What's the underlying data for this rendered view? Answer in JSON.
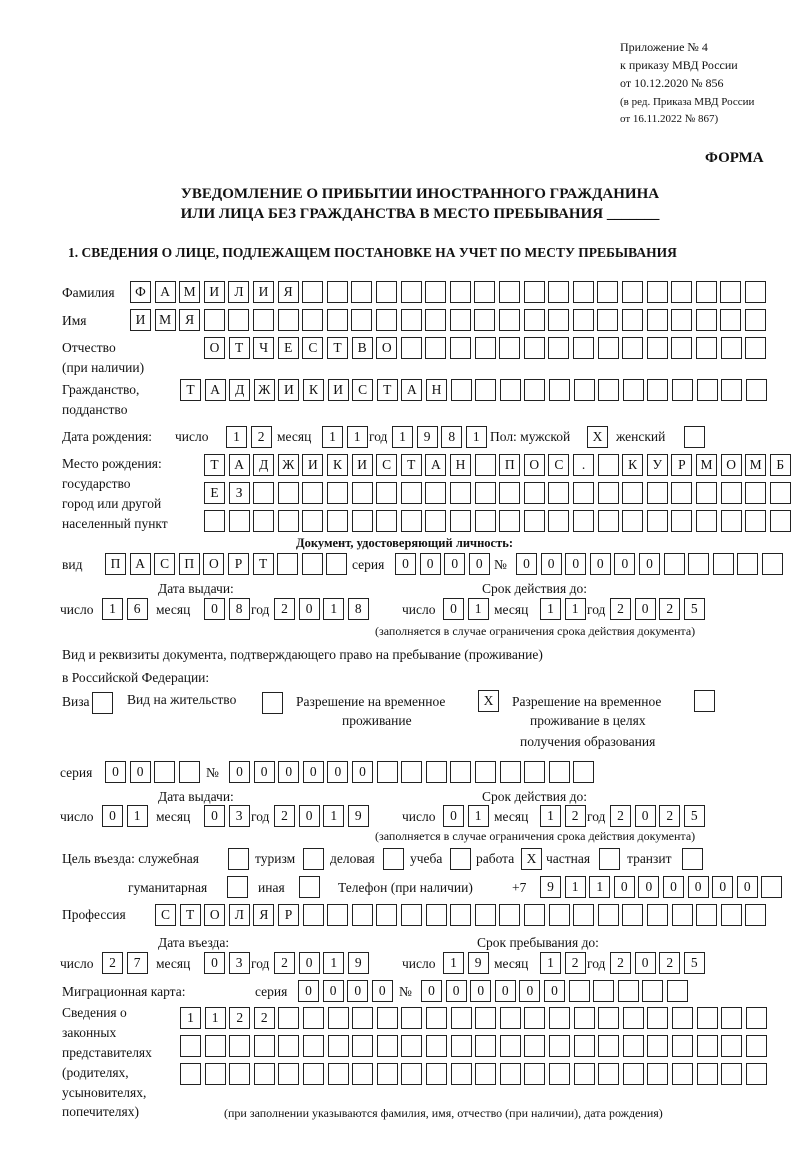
{
  "header": {
    "line1": "Приложение № 4",
    "line2": "к приказу МВД России",
    "line3": "от 10.12.2020 № 856",
    "line4": "(в ред. Приказа МВД России",
    "line5": "от 16.11.2022 № 867)",
    "forma": "ФОРМА"
  },
  "title": {
    "line1": "УВЕДОМЛЕНИЕ О ПРИБЫТИИ ИНОСТРАННОГО ГРАЖДАНИНА",
    "line2": "ИЛИ ЛИЦА БЕЗ ГРАЖДАНСТВА В МЕСТО ПРЕБЫВАНИЯ _______"
  },
  "section1": "1. СВЕДЕНИЯ О ЛИЦЕ, ПОДЛЕЖАЩЕМ ПОСТАНОВКЕ НА УЧЕТ ПО МЕСТУ ПРЕБЫВАНИЯ",
  "labels": {
    "surname": "Фамилия",
    "name": "Имя",
    "patronymic1": "Отчество",
    "patronymic2": "(при наличии)",
    "citizenship1": "Гражданство,",
    "citizenship2": "подданство",
    "birthdate": "Дата рождения:",
    "day": "число",
    "month": "месяц",
    "year": "год",
    "sex": "Пол: мужской",
    "female": "женский",
    "birthplace1": "Место рождения:",
    "birthplace2": "государство",
    "birthplace3": "город или другой",
    "birthplace4": "населенный пункт",
    "iddoc": "Документ, удостоверяющий личность:",
    "kind": "вид",
    "series": "серия",
    "number": "№",
    "issued": "Дата выдачи:",
    "valid": "Срок действия до:",
    "valid_note": "(заполняется в случае ограничения срока действия документа)",
    "stay_doc1": "Вид и реквизиты документа, подтверждающего право на пребывание (проживание)",
    "stay_doc2": "в Российской Федерации:",
    "visa": "Виза",
    "residence": "Вид на жительство",
    "trp1": "Разрешение на временное",
    "trp2": "проживание",
    "trpe1": "Разрешение на временное",
    "trpe2": "проживание в целях",
    "trpe3": "получения образования",
    "purpose": "Цель въезда: служебная",
    "tourism": "туризм",
    "business": "деловая",
    "study": "учеба",
    "work": "работа",
    "private": "частная",
    "transit": "транзит",
    "humanitarian": "гуманитарная",
    "other": "иная",
    "phone": "Телефон (при наличии)",
    "phone_prefix": "+7",
    "profession": "Профессия",
    "entry_date": "Дата въезда:",
    "stay_until": "Срок пребывания до:",
    "migration_card": "Миграционная карта:",
    "legal1": "Сведения о",
    "legal2": "законных",
    "legal3": "представителях",
    "legal4": "(родителях,",
    "legal5": "усыновителях,",
    "legal6": "попечителях)",
    "legal_note": "(при заполнении указываются фамилия, имя, отчество (при наличии), дата рождения)"
  },
  "fields": {
    "surname": [
      "Ф",
      "А",
      "М",
      "И",
      "Л",
      "И",
      "Я"
    ],
    "name": [
      "И",
      "М",
      "Я"
    ],
    "patronymic": [
      "О",
      "Т",
      "Ч",
      "Е",
      "С",
      "Т",
      "В",
      "О"
    ],
    "citizenship": [
      "Т",
      "А",
      "Д",
      "Ж",
      "И",
      "К",
      "И",
      "С",
      "Т",
      "А",
      "Н"
    ],
    "birth_day": [
      "1",
      "2"
    ],
    "birth_month": [
      "1",
      "1"
    ],
    "birth_year": [
      "1",
      "9",
      "8",
      "1"
    ],
    "sex_male": [
      "X"
    ],
    "sex_female": [
      ""
    ],
    "birthplace1": [
      "Т",
      "А",
      "Д",
      "Ж",
      "И",
      "К",
      "И",
      "С",
      "Т",
      "А",
      "Н",
      "",
      "П",
      "О",
      "С",
      ".",
      "",
      "К",
      "У",
      "Р",
      "М",
      "О",
      "М",
      "Б"
    ],
    "birthplace2": [
      "Е",
      "З"
    ],
    "birthplace3": [],
    "doc_kind": [
      "П",
      "А",
      "С",
      "П",
      "О",
      "Р",
      "Т"
    ],
    "doc_series": [
      "0",
      "0",
      "0",
      "0"
    ],
    "doc_number": [
      "0",
      "0",
      "0",
      "0",
      "0",
      "0"
    ],
    "doc_issued_day": [
      "1",
      "6"
    ],
    "doc_issued_month": [
      "0",
      "8"
    ],
    "doc_issued_year": [
      "2",
      "0",
      "1",
      "8"
    ],
    "doc_valid_day": [
      "0",
      "1"
    ],
    "doc_valid_month": [
      "1",
      "1"
    ],
    "doc_valid_year": [
      "2",
      "0",
      "2",
      "5"
    ],
    "visa": [
      ""
    ],
    "residence": [
      ""
    ],
    "trp": [
      "X"
    ],
    "trpe": [
      ""
    ],
    "stay_series": [
      "0",
      "0"
    ],
    "stay_number": [
      "0",
      "0",
      "0",
      "0",
      "0",
      "0"
    ],
    "stay_issued_day": [
      "0",
      "1"
    ],
    "stay_issued_month": [
      "0",
      "3"
    ],
    "stay_issued_year": [
      "2",
      "0",
      "1",
      "9"
    ],
    "stay_valid_day": [
      "0",
      "1"
    ],
    "stay_valid_month": [
      "1",
      "2"
    ],
    "stay_valid_year": [
      "2",
      "0",
      "2",
      "5"
    ],
    "p_service": [
      ""
    ],
    "p_tourism": [
      ""
    ],
    "p_business": [
      ""
    ],
    "p_study": [
      ""
    ],
    "p_work": [
      "X"
    ],
    "p_private": [
      ""
    ],
    "p_transit": [
      ""
    ],
    "p_humanitarian": [
      ""
    ],
    "p_other": [
      ""
    ],
    "phone": [
      "9",
      "1",
      "1",
      "0",
      "0",
      "0",
      "0",
      "0",
      "0"
    ],
    "profession": [
      "С",
      "Т",
      "О",
      "Л",
      "Я",
      "Р"
    ],
    "entry_day": [
      "2",
      "7"
    ],
    "entry_month": [
      "0",
      "3"
    ],
    "entry_year": [
      "2",
      "0",
      "1",
      "9"
    ],
    "until_day": [
      "1",
      "9"
    ],
    "until_month": [
      "1",
      "2"
    ],
    "until_year": [
      "2",
      "0",
      "2",
      "5"
    ],
    "mc_series": [
      "0",
      "0",
      "0",
      "0"
    ],
    "mc_number": [
      "0",
      "0",
      "0",
      "0",
      "0",
      "0"
    ],
    "legal1": [
      "1",
      "1",
      "2",
      "2"
    ],
    "legal2": [],
    "legal3": []
  }
}
